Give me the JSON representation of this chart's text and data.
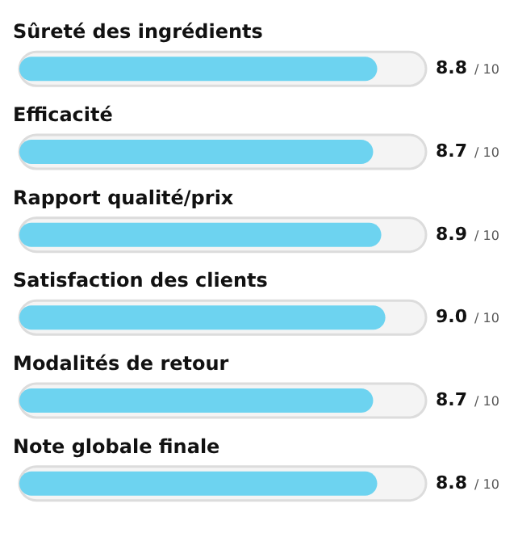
{
  "chart_data": {
    "type": "bar",
    "orientation": "horizontal",
    "categories": [
      "Sûreté des ingrédients",
      "Efficacité",
      "Rapport qualité/prix",
      "Satisfaction des clients",
      "Modalités de retour",
      "Note globale finale"
    ],
    "values": [
      8.8,
      8.7,
      8.9,
      9.0,
      8.7,
      8.8
    ],
    "value_labels": [
      "8.8",
      "8.7",
      "8.9",
      "9.0",
      "8.7",
      "8.8"
    ],
    "annotations": [
      "/ 10",
      "/ 10",
      "/ 10",
      "/ 10",
      "/ 10",
      "/ 10"
    ],
    "color": "#6dd3f0",
    "xlim": [
      0,
      10
    ],
    "tick_labels": false
  }
}
